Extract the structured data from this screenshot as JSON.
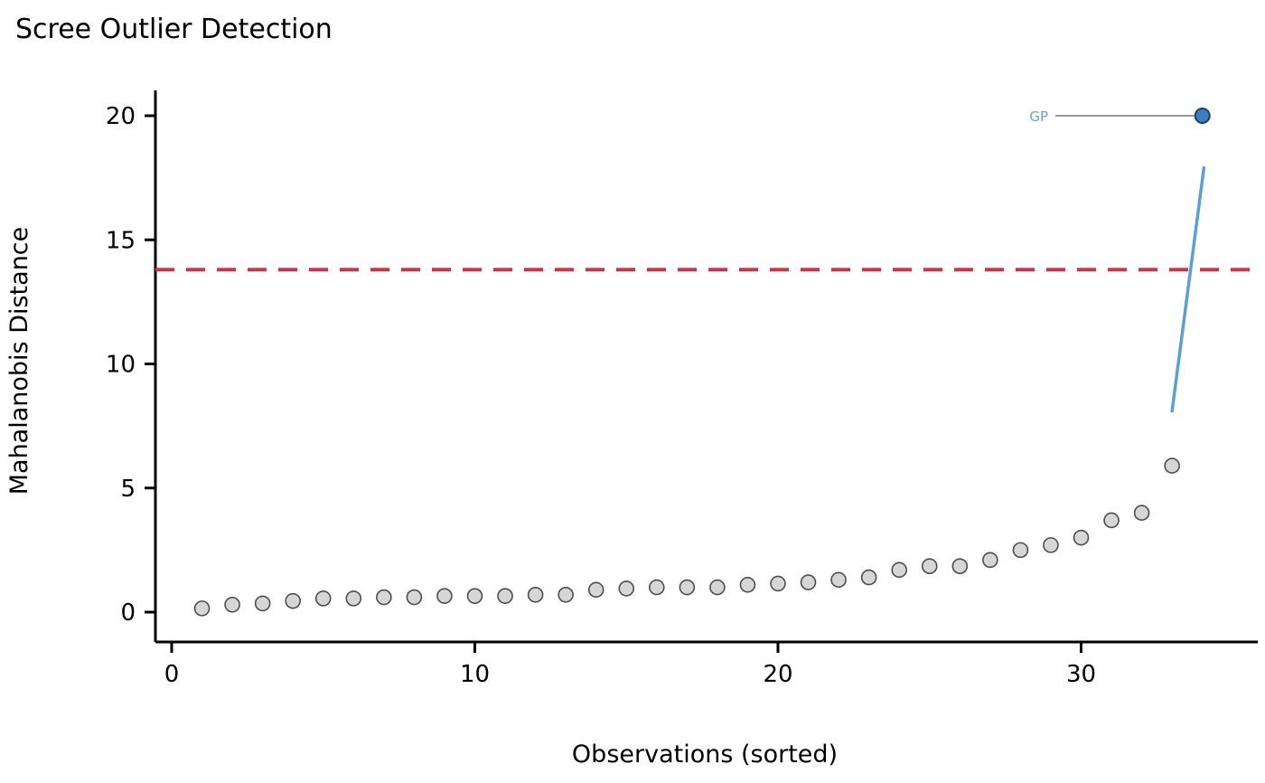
{
  "chart_data": {
    "type": "scatter",
    "title": "Scree Outlier Detection",
    "xlabel": "Observations (sorted)",
    "ylabel": "Mahalanobis Distance",
    "xlim": [
      -0.6,
      35.8
    ],
    "ylim": [
      -0.6,
      21.0
    ],
    "x_ticks": [
      0,
      10,
      20,
      30
    ],
    "y_ticks": [
      0,
      5,
      10,
      15,
      20
    ],
    "grid": false,
    "legend": {
      "label": "GP",
      "marker": {
        "x": 34,
        "y": 20
      },
      "label_color": "#6b9fd2",
      "marker_fill": "#3c7ebf",
      "marker_edge": "#1f3f63",
      "connector_color": "#9a9a9a"
    },
    "series": [
      {
        "name": "observations",
        "type": "scatter",
        "marker_fill": "#d6d6d6",
        "marker_edge": "#4d4d4d",
        "x": [
          1,
          2,
          3,
          4,
          5,
          6,
          7,
          8,
          9,
          10,
          11,
          12,
          13,
          14,
          15,
          16,
          17,
          18,
          19,
          20,
          21,
          22,
          23,
          24,
          25,
          26,
          27,
          28,
          29,
          30,
          31,
          32,
          33
        ],
        "y": [
          0.15,
          0.3,
          0.35,
          0.45,
          0.55,
          0.55,
          0.6,
          0.6,
          0.65,
          0.65,
          0.65,
          0.7,
          0.7,
          0.9,
          0.95,
          1.0,
          1.0,
          1.0,
          1.1,
          1.15,
          1.2,
          1.3,
          1.4,
          1.7,
          1.85,
          1.85,
          2.1,
          2.5,
          2.7,
          3.0,
          3.7,
          4.0,
          5.9
        ]
      },
      {
        "name": "gp-fit-line",
        "type": "line",
        "color": "#5b9fd6",
        "x": [
          33.0,
          34.05
        ],
        "y": [
          8.1,
          17.9
        ]
      }
    ],
    "threshold_line": {
      "y": 13.8,
      "color": "#c9364a",
      "style": "dashed"
    }
  }
}
